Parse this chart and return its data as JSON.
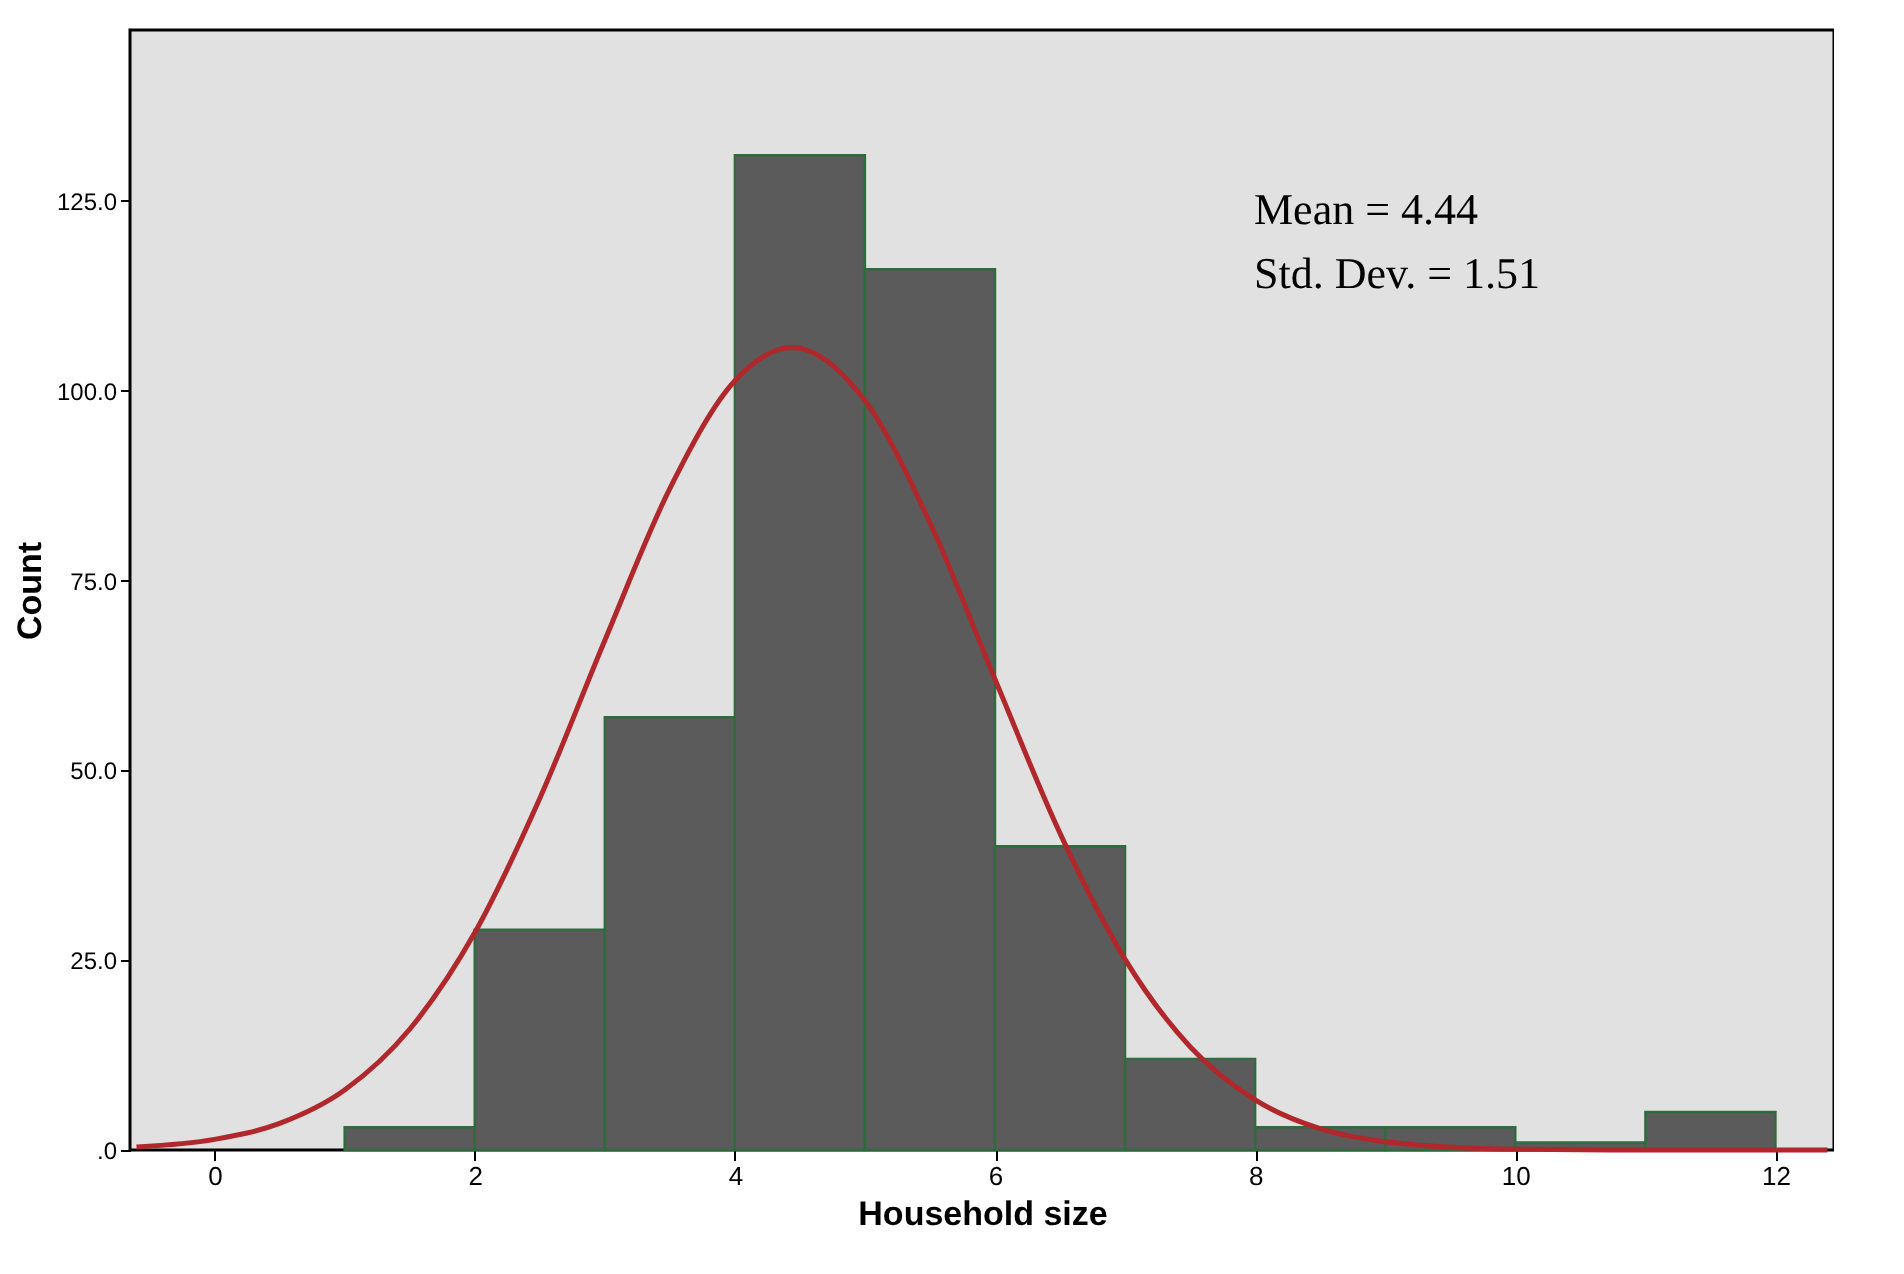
{
  "chart_data": {
    "type": "histogram",
    "xlabel": "Household size",
    "ylabel": "Count",
    "annotations": [
      "Mean = 4.44",
      "Std. Dev. = 1.51"
    ],
    "xlim": [
      -0.65,
      12.45
    ],
    "xticks": [
      0,
      2,
      4,
      6,
      8,
      10,
      12
    ],
    "ylim": [
      0,
      147.5
    ],
    "yticks": [
      {
        "value": 0,
        "label": ".0"
      },
      {
        "value": 25,
        "label": "25.0"
      },
      {
        "value": 50,
        "label": "50.0"
      },
      {
        "value": 75,
        "label": "75.0"
      },
      {
        "value": 100,
        "label": "100.0"
      },
      {
        "value": 125,
        "label": "125.0"
      }
    ],
    "grid": false,
    "series": [
      {
        "color": "#5b5b5b",
        "bins": [
          1,
          2,
          3,
          4,
          5,
          6,
          7,
          8,
          9,
          10,
          11,
          12
        ],
        "values": [
          3,
          29,
          57,
          131,
          116,
          40,
          12,
          3,
          3,
          1,
          5
        ]
      },
      {
        "type": "line",
        "color": "#b0282c",
        "x": [
          -0.6,
          0,
          0.5,
          1,
          1.5,
          2,
          2.5,
          3,
          3.5,
          4,
          4.44,
          5,
          5.5,
          6,
          6.5,
          7,
          7.5,
          8,
          8.5,
          9,
          10,
          11,
          12.4
        ],
        "values": [
          0.4,
          1.4,
          3.5,
          7.9,
          15.9,
          28.6,
          46.3,
          67.1,
          87.1,
          101.3,
          105.7,
          98.7,
          82.6,
          62.0,
          41.7,
          25.1,
          13.6,
          6.6,
          2.8,
          1.1,
          0.1,
          0,
          0
        ]
      }
    ]
  }
}
